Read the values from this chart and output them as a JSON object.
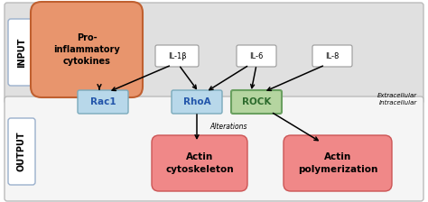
{
  "pro_inflam_color": "#e8956d",
  "pro_inflam_edge": "#c06030",
  "il_box_color": "#ffffff",
  "il_box_edge": "#999999",
  "rac1_color": "#b8d8ea",
  "rac1_edge": "#7aaabb",
  "rhoa_color": "#b8d8ea",
  "rhoa_edge": "#7aaabb",
  "rock_color": "#b5d5a0",
  "rock_edge": "#6aa060",
  "actin_color": "#f08888",
  "actin_edge": "#cc5555",
  "input_bg": "#e0e0e0",
  "output_bg": "#f5f5f5",
  "border_color": "#bbbbbb",
  "input_label": "INPUT",
  "output_label": "OUTPUT",
  "pro_inflam_text": "Pro-\ninflammatory\ncytokines",
  "il1b_text": "IL-1β",
  "il6_text": "IL-6",
  "il8_text": "IL-8",
  "rac1_text": "Rac1",
  "rhoa_text": "RhoA",
  "rock_text": "ROCK",
  "actin_cyto_text": "Actin\ncytoskeleton",
  "actin_poly_text": "Actin\npolymerization",
  "alterations_text": "Alterations",
  "extracellular_text": "Extracellular",
  "intracellular_text": "Intracellular"
}
